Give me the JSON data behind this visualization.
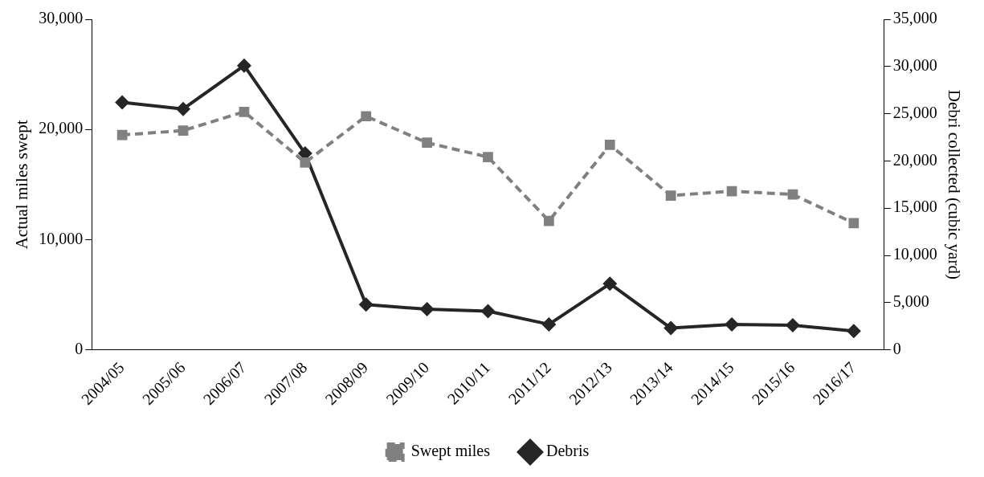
{
  "chart_data": {
    "type": "line",
    "categories": [
      "2004/05",
      "2005/06",
      "2006/07",
      "2007/08",
      "2008/09",
      "2009/10",
      "2010/11",
      "2011/12",
      "2012/13",
      "2013/14",
      "2014/15",
      "2015/16",
      "2016/17"
    ],
    "series": [
      {
        "name": "Swept miles",
        "color": "#808080",
        "marker": "square",
        "line_style": "dashed",
        "values": [
          19500,
          19900,
          21600,
          17000,
          21200,
          18800,
          17500,
          11700,
          18600,
          14000,
          14400,
          14100,
          11500
        ]
      },
      {
        "name": "Debris",
        "color": "#262626",
        "marker": "diamond",
        "line_style": "solid",
        "axis": "y2",
        "values": [
          26200,
          25500,
          30100,
          20800,
          4800,
          4300,
          4100,
          2700,
          7000,
          2300,
          2700,
          2600,
          2000
        ]
      }
    ],
    "ylabel": "Actual miles swept",
    "y2label": "Debri collected (cubic yard)",
    "ylim": [
      0,
      30000
    ],
    "yticks": [
      0,
      {
        "value": 10000,
        "label": "10,000"
      },
      {
        "value": 20000,
        "label": "20,000"
      },
      {
        "value": 30000,
        "label": "30,000"
      }
    ],
    "y2lim": [
      0,
      35000
    ],
    "y2ticks": [
      0,
      {
        "value": 5000,
        "label": "5,000"
      },
      {
        "value": 10000,
        "label": "10,000"
      },
      {
        "value": 15000,
        "label": "15,000"
      },
      {
        "value": 20000,
        "label": "20,000"
      },
      {
        "value": 25000,
        "label": "25,000"
      },
      {
        "value": 30000,
        "label": "30,000"
      },
      {
        "value": 35000,
        "label": "35,000"
      }
    ],
    "grid": false,
    "legend": "bottom"
  }
}
